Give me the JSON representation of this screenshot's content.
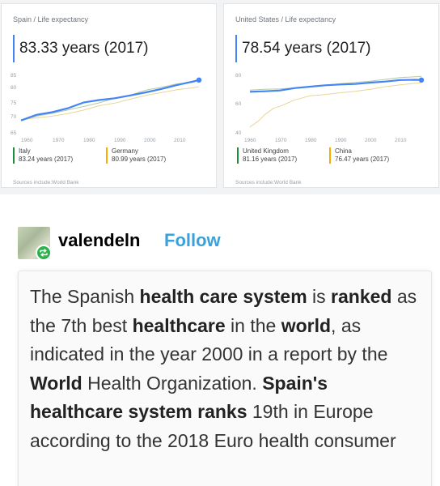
{
  "cards": [
    {
      "breadcrumb": "Spain / Life expectancy",
      "headline": "83.33 years (2017)",
      "y_ticks": [
        "85",
        "80",
        "75",
        "70",
        "65"
      ],
      "x_ticks": [
        "1960",
        "1970",
        "1980",
        "1990",
        "2000",
        "2010"
      ],
      "legend": [
        {
          "name": "Italy",
          "value": "83.24 years (2017)",
          "color": "#1e8e3e"
        },
        {
          "name": "Germany",
          "value": "80.99 years (2017)",
          "color": "#f9ab00"
        }
      ],
      "source": "Sources include:World Bank"
    },
    {
      "breadcrumb": "United States / Life expectancy",
      "headline": "78.54 years (2017)",
      "y_ticks": [
        "80",
        "60",
        "40"
      ],
      "x_ticks": [
        "1960",
        "1970",
        "1980",
        "1990",
        "2000",
        "2010"
      ],
      "legend": [
        {
          "name": "United Kingdom",
          "value": "81.16 years (2017)",
          "color": "#1e8e3e"
        },
        {
          "name": "China",
          "value": "76.47 years (2017)",
          "color": "#f9ab00"
        }
      ],
      "source": "Sources include:World Bank"
    }
  ],
  "chart_data": [
    {
      "type": "line",
      "ylim": [
        65,
        85
      ],
      "xlim": [
        1960,
        2017
      ],
      "series": [
        {
          "name": "Spain",
          "color": "#4285f4",
          "x": [
            1960,
            1965,
            1970,
            1975,
            1980,
            1985,
            1990,
            1995,
            2000,
            2005,
            2010,
            2015,
            2017
          ],
          "values": [
            69.1,
            71.1,
            72.0,
            73.4,
            75.4,
            76.3,
            76.9,
            77.9,
            79.0,
            80.2,
            81.6,
            82.8,
            83.33
          ]
        },
        {
          "name": "Italy",
          "color": "#b6c8a4",
          "x": [
            1960,
            1965,
            1970,
            1975,
            1980,
            1985,
            1990,
            1995,
            2000,
            2005,
            2010,
            2015,
            2017
          ],
          "values": [
            69.1,
            70.6,
            71.6,
            72.8,
            74.0,
            75.3,
            76.9,
            78.0,
            79.8,
            80.8,
            82.0,
            82.5,
            83.24
          ]
        },
        {
          "name": "Germany",
          "color": "#e8d595",
          "x": [
            1960,
            1965,
            1970,
            1975,
            1980,
            1985,
            1990,
            1995,
            2000,
            2005,
            2010,
            2015,
            2017
          ],
          "values": [
            69.3,
            70.0,
            70.6,
            71.5,
            72.7,
            74.3,
            75.2,
            76.6,
            77.9,
            78.9,
            79.9,
            80.6,
            80.99
          ]
        }
      ]
    },
    {
      "type": "line",
      "ylim": [
        40,
        82
      ],
      "xlim": [
        1960,
        2017
      ],
      "series": [
        {
          "name": "United States",
          "color": "#4285f4",
          "x": [
            1960,
            1965,
            1970,
            1975,
            1980,
            1985,
            1990,
            1995,
            2000,
            2005,
            2010,
            2015,
            2017
          ],
          "values": [
            69.8,
            70.2,
            70.8,
            72.6,
            73.6,
            74.6,
            75.2,
            75.6,
            76.6,
            77.4,
            78.5,
            78.7,
            78.54
          ]
        },
        {
          "name": "United Kingdom",
          "color": "#b6c8a4",
          "x": [
            1960,
            1965,
            1970,
            1975,
            1980,
            1985,
            1990,
            1995,
            2000,
            2005,
            2010,
            2015,
            2017
          ],
          "values": [
            71.1,
            71.6,
            71.9,
            72.7,
            73.7,
            74.6,
            75.9,
            76.7,
            77.7,
            79.0,
            80.4,
            81.0,
            81.16
          ]
        },
        {
          "name": "China",
          "color": "#e8d595",
          "x": [
            1960,
            1963,
            1965,
            1968,
            1970,
            1975,
            1980,
            1985,
            1990,
            1995,
            2000,
            2005,
            2010,
            2015,
            2017
          ],
          "values": [
            43.7,
            48.5,
            53.0,
            57.8,
            59.1,
            63.9,
            66.8,
            67.7,
            69.1,
            70.1,
            71.7,
            73.6,
            74.9,
            76.1,
            76.47
          ]
        }
      ]
    }
  ],
  "post": {
    "username": "valendeln",
    "follow_label": "Follow",
    "quote_segments": [
      {
        "text": "The Spanish ",
        "bold": false
      },
      {
        "text": "health care system",
        "bold": true
      },
      {
        "text": " is ",
        "bold": false
      },
      {
        "text": "ranked",
        "bold": true
      },
      {
        "text": " as the 7th best ",
        "bold": false
      },
      {
        "text": "healthcare",
        "bold": true
      },
      {
        "text": " in the ",
        "bold": false
      },
      {
        "text": "world",
        "bold": true
      },
      {
        "text": ", as indicated in the year 2000 in a report by the ",
        "bold": false
      },
      {
        "text": "World",
        "bold": true
      },
      {
        "text": " Health Organization. ",
        "bold": false
      },
      {
        "text": "Spain's healthcare system ranks",
        "bold": true
      },
      {
        "text": " 19th in Europe according to the 2018 Euro health consumer",
        "bold": false
      }
    ]
  }
}
